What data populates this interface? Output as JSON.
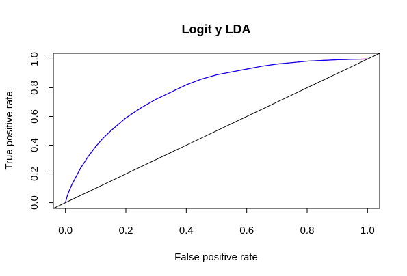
{
  "chart_data": {
    "type": "line",
    "title": "Logit y LDA",
    "xlabel": "False positive rate",
    "ylabel": "True positive rate",
    "xlim": [
      -0.04,
      1.04
    ],
    "ylim": [
      -0.04,
      1.04
    ],
    "x_ticks": [
      "0.0",
      "0.2",
      "0.4",
      "0.6",
      "0.8",
      "1.0"
    ],
    "y_ticks": [
      "0.0",
      "0.2",
      "0.4",
      "0.6",
      "0.8",
      "1.0"
    ],
    "grid": false,
    "legend": "none",
    "series": [
      {
        "color": "#ff0000",
        "x": [
          0,
          0.005,
          0.01,
          0.02,
          0.03,
          0.05,
          0.075,
          0.1,
          0.125,
          0.15,
          0.2,
          0.25,
          0.3,
          0.35,
          0.4,
          0.45,
          0.5,
          0.55,
          0.6,
          0.65,
          0.7,
          0.75,
          0.8,
          0.85,
          0.9,
          0.95,
          1.0
        ],
        "y": [
          0,
          0.04,
          0.07,
          0.12,
          0.16,
          0.24,
          0.32,
          0.39,
          0.45,
          0.5,
          0.59,
          0.66,
          0.72,
          0.77,
          0.82,
          0.86,
          0.89,
          0.91,
          0.93,
          0.95,
          0.965,
          0.975,
          0.985,
          0.99,
          0.995,
          0.998,
          1.0
        ]
      },
      {
        "color": "#0000ff",
        "x": [
          0,
          0.005,
          0.01,
          0.02,
          0.03,
          0.05,
          0.075,
          0.1,
          0.125,
          0.15,
          0.2,
          0.25,
          0.3,
          0.35,
          0.4,
          0.45,
          0.5,
          0.55,
          0.6,
          0.65,
          0.7,
          0.75,
          0.8,
          0.85,
          0.9,
          0.95,
          1.0
        ],
        "y": [
          0,
          0.04,
          0.07,
          0.12,
          0.16,
          0.24,
          0.32,
          0.39,
          0.45,
          0.5,
          0.59,
          0.66,
          0.72,
          0.77,
          0.82,
          0.86,
          0.89,
          0.91,
          0.93,
          0.95,
          0.965,
          0.975,
          0.985,
          0.99,
          0.995,
          0.998,
          1.0
        ]
      }
    ],
    "reference_line": {
      "color": "#000000",
      "slope": 1,
      "intercept": 0
    }
  }
}
